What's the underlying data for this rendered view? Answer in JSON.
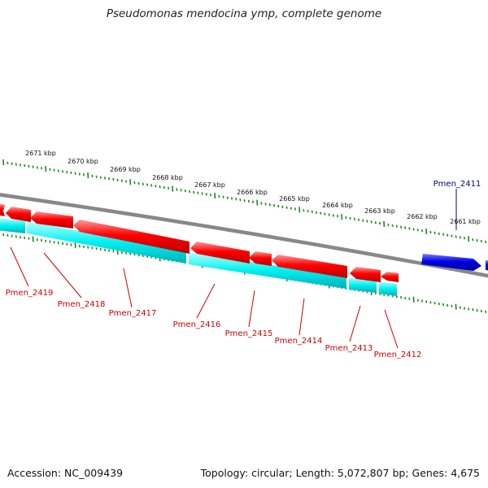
{
  "title": "Pseudomonas mendocina ymp, complete genome",
  "footer": {
    "accession": "Accession: NC_009439",
    "summary": "Topology: circular; Length: 5,072,807 bp; Genes: 4,675"
  },
  "colors": {
    "background": "#ffffff",
    "backbone": "#808080",
    "scale_ticks": "#1a8a1a",
    "forward_gene": "#0000e6",
    "reverse_gene": "#ff0000",
    "cds": "#00ffff",
    "gene_label_forward": "#00008b",
    "gene_label_reverse": "#cc0000"
  },
  "scale_labels": [
    "2671 kbp",
    "2670 kbp",
    "2669 kbp",
    "2668 kbp",
    "2667 kbp",
    "2666 kbp",
    "2665 kbp",
    "2664 kbp",
    "2663 kbp",
    "2662 kbp",
    "2661 kbp"
  ],
  "genes": [
    {
      "name": "Pmen_2411",
      "strand": "forward"
    },
    {
      "name": "Pmen_2412",
      "strand": "reverse"
    },
    {
      "name": "Pmen_2413",
      "strand": "reverse"
    },
    {
      "name": "Pmen_2414",
      "strand": "reverse"
    },
    {
      "name": "Pmen_2415",
      "strand": "reverse"
    },
    {
      "name": "Pmen_2416",
      "strand": "reverse"
    },
    {
      "name": "Pmen_2417",
      "strand": "reverse"
    },
    {
      "name": "Pmen_2418",
      "strand": "reverse"
    },
    {
      "name": "Pmen_2419",
      "strand": "reverse"
    }
  ]
}
